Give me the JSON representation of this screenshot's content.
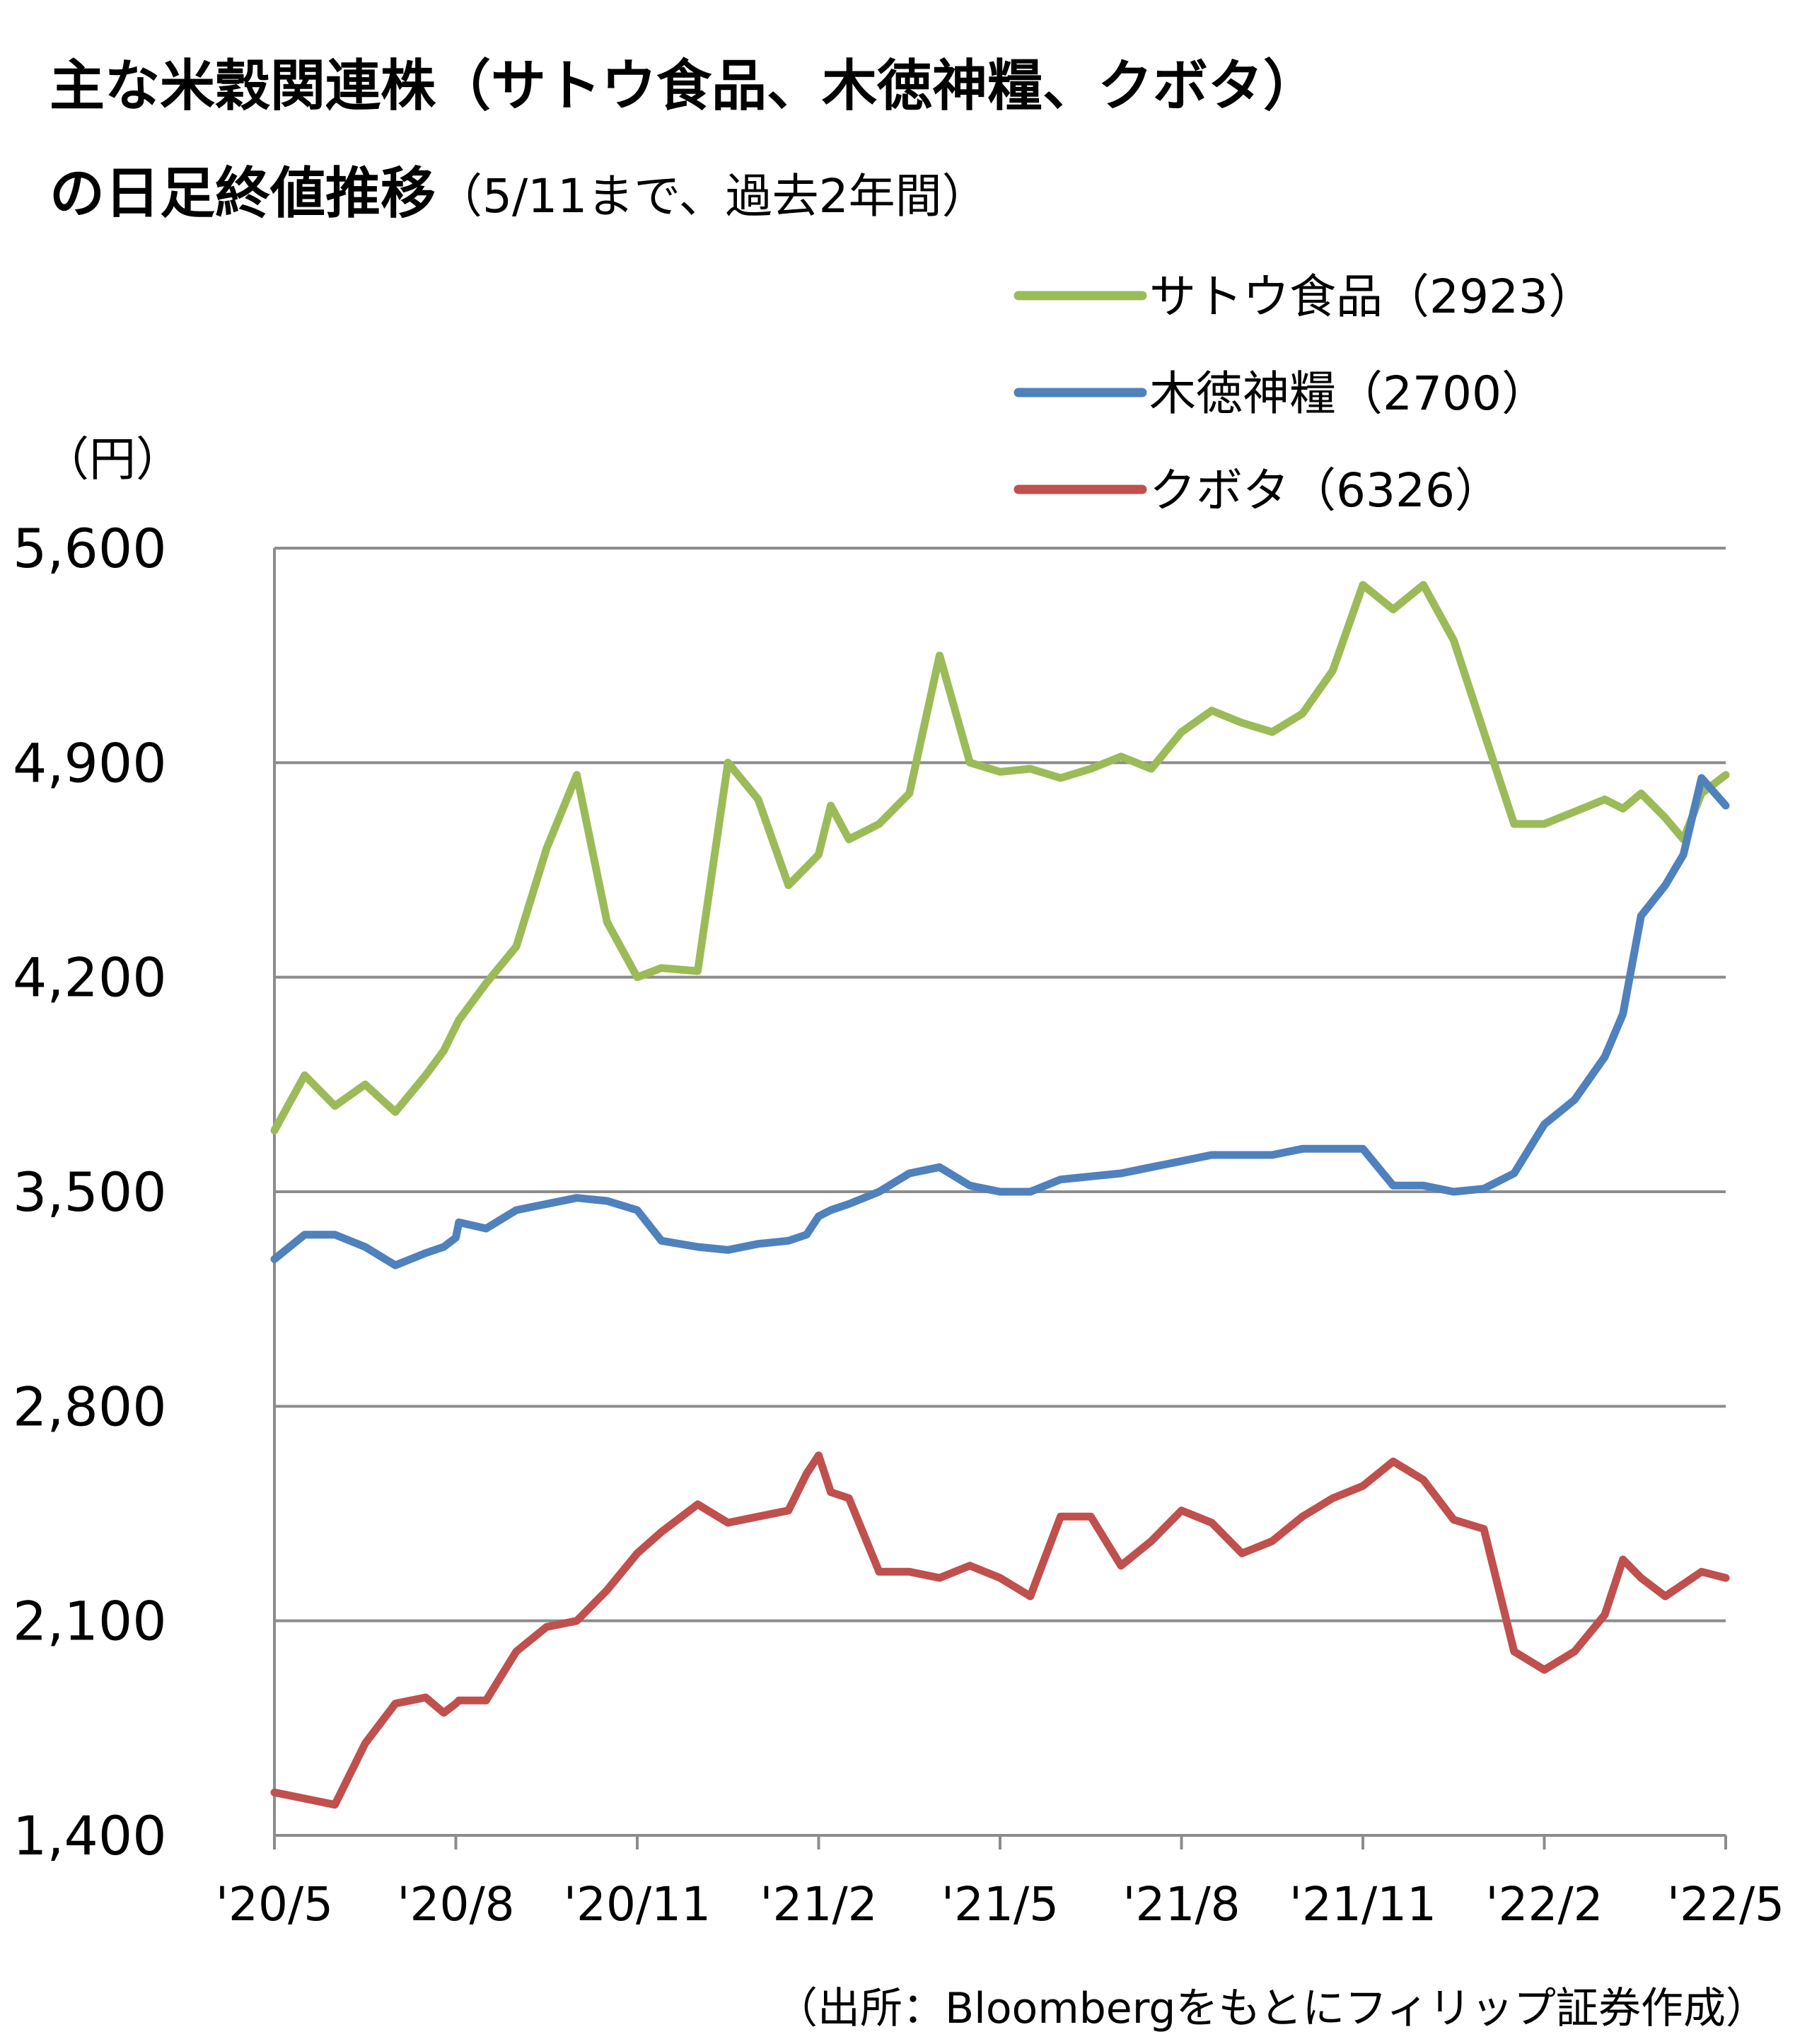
{
  "chart_data": {
    "type": "line",
    "title": "主な米穀関連株（サトウ食品、木徳神糧、クボタ）",
    "title_line2_main": "の日足終値推移",
    "title_line2_note": "（5/11まで、過去2年間）",
    "y_unit": "（円）",
    "ylim": [
      1400,
      5600
    ],
    "yticks": [
      1400,
      2100,
      2800,
      3500,
      4200,
      4900,
      5600
    ],
    "ytick_labels": [
      "1,400",
      "2,100",
      "2,800",
      "3,500",
      "4,200",
      "4,900",
      "5,600"
    ],
    "x_labels": [
      "'20/5",
      "'20/8",
      "'20/11",
      "'21/2",
      "'21/5",
      "'21/8",
      "'21/11",
      "'22/2",
      "'22/5"
    ],
    "grid": "horizontal",
    "legend_position": "top-right",
    "source": "（出所：Bloombergをもとにフィリップ証券作成）",
    "x_months": [
      0,
      0.5,
      1,
      1.5,
      2,
      2.5,
      2.8,
      3,
      3.05,
      3.5,
      4,
      4.5,
      5,
      5.5,
      6,
      6.4,
      7,
      7.5,
      8,
      8.5,
      8.8,
      9,
      9.2,
      9.5,
      10,
      10.5,
      11,
      11.5,
      12,
      12.5,
      13,
      13.5,
      14,
      14.5,
      15,
      15.5,
      16,
      16.5,
      17,
      17.5,
      18,
      18.5,
      19,
      19.5,
      20,
      20.5,
      21,
      21.5,
      22,
      22.3,
      22.6,
      23,
      23.3,
      23.6,
      24
    ],
    "series": [
      {
        "name": "サトウ食品（2923）",
        "color": "#9BBB59",
        "values": [
          3700,
          3880,
          3780,
          3850,
          3760,
          3880,
          3960,
          4040,
          4060,
          4180,
          4300,
          4620,
          4860,
          4380,
          4200,
          4230,
          4220,
          4900,
          4780,
          4500,
          4560,
          4600,
          4760,
          4650,
          4700,
          4800,
          5250,
          4900,
          4870,
          4880,
          4850,
          4880,
          4920,
          4880,
          5000,
          5070,
          5030,
          5000,
          5060,
          5200,
          5480,
          5400,
          5480,
          5300,
          5000,
          4700,
          4700,
          4740,
          4780,
          4750,
          4800,
          4720,
          4650,
          4800,
          4860
        ]
      },
      {
        "name": "木徳神糧（2700）",
        "color": "#4F81BD",
        "values": [
          3280,
          3360,
          3360,
          3320,
          3260,
          3300,
          3320,
          3350,
          3400,
          3380,
          3440,
          3460,
          3480,
          3470,
          3440,
          3340,
          3320,
          3310,
          3330,
          3340,
          3360,
          3420,
          3440,
          3460,
          3500,
          3560,
          3580,
          3520,
          3500,
          3500,
          3540,
          3550,
          3560,
          3580,
          3600,
          3620,
          3620,
          3620,
          3640,
          3640,
          3640,
          3520,
          3520,
          3500,
          3510,
          3560,
          3720,
          3800,
          3940,
          4080,
          4400,
          4500,
          4600,
          4850,
          4760
        ]
      },
      {
        "name": "クボタ（6326）",
        "color": "#C0504D",
        "values": [
          1540,
          1520,
          1500,
          1700,
          1830,
          1850,
          1800,
          1830,
          1840,
          1840,
          2000,
          2080,
          2100,
          2200,
          2320,
          2390,
          2480,
          2420,
          2440,
          2460,
          2580,
          2640,
          2520,
          2500,
          2260,
          2260,
          2240,
          2280,
          2240,
          2180,
          2440,
          2440,
          2280,
          2360,
          2460,
          2420,
          2320,
          2360,
          2440,
          2500,
          2540,
          2620,
          2560,
          2430,
          2400,
          2000,
          1940,
          2000,
          2120,
          2300,
          2240,
          2180,
          2220,
          2260,
          2240
        ]
      }
    ]
  }
}
